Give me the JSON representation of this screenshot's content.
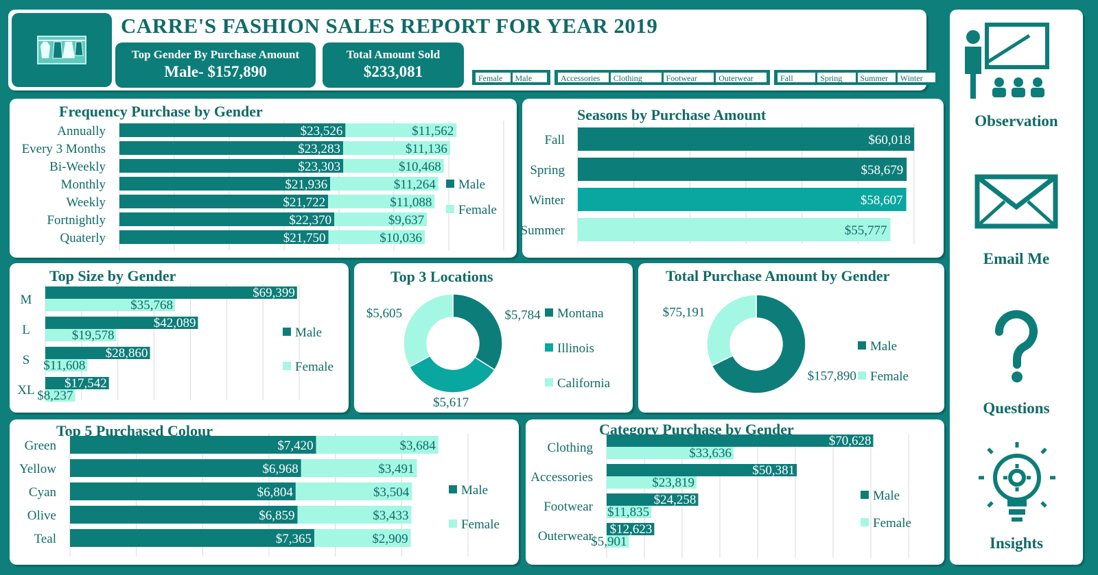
{
  "header": {
    "title": "CARRE'S FASHION SALES REPORT FOR YEAR 2019",
    "kpi1_label": "Top Gender By Purchase Amount",
    "kpi1_value": "Male- $157,890",
    "kpi2_label": "Total Amount Sold",
    "kpi2_value": "$233,081",
    "slicer_gender": [
      "Female",
      "Male"
    ],
    "slicer_category": [
      "Accessories",
      "Clothing",
      "Footwear",
      "Outerwear"
    ],
    "slicer_season": [
      "Fall",
      "Spring",
      "Summer",
      "Winter"
    ]
  },
  "nav": {
    "observation": "Observation",
    "email": "Email Me",
    "questions": "Questions",
    "insights": "Insights"
  },
  "colors": {
    "male": "#0d7d79",
    "female": "#a4f7e3",
    "mid": "#0aa6a0",
    "panel": "#ffffff",
    "bg": "#0e7f7b"
  },
  "chart_data": [
    {
      "id": "freq",
      "type": "bar",
      "orientation": "horizontal",
      "stacked": true,
      "title": "Frequency Purchase by Gender",
      "categories": [
        "Annually",
        "Every 3 Months",
        "Bi-Weekly",
        "Monthly",
        "Weekly",
        "Fortnightly",
        "Quaterly"
      ],
      "series": [
        {
          "name": "Male",
          "values": [
            23526,
            23283,
            23303,
            21936,
            21722,
            22370,
            21750
          ]
        },
        {
          "name": "Female",
          "values": [
            11562,
            11136,
            10468,
            11264,
            11088,
            9637,
            10036
          ]
        }
      ],
      "labels": {
        "Male": [
          "$23,526",
          "$23,283",
          "$23,303",
          "$21,936",
          "$21,722",
          "$22,370",
          "$21,750"
        ],
        "Female": [
          "$11,562",
          "$11,136",
          "$10,468",
          "$11,264",
          "$11,088",
          "$9,637",
          "$10,036"
        ]
      },
      "legend": "right"
    },
    {
      "id": "seasons",
      "type": "bar",
      "orientation": "horizontal",
      "title": "Seasons by Purchase Amount",
      "categories": [
        "Fall",
        "Spring",
        "Winter",
        "Summer"
      ],
      "values": [
        60018,
        58679,
        58607,
        55777
      ],
      "labels": [
        "$60,018",
        "$58,679",
        "$58,607",
        "$55,777"
      ]
    },
    {
      "id": "size",
      "type": "bar",
      "orientation": "horizontal",
      "grouped": true,
      "title": "Top Size by Gender",
      "categories": [
        "M",
        "L",
        "S",
        "XL"
      ],
      "series": [
        {
          "name": "Male",
          "values": [
            69399,
            42089,
            28860,
            17542
          ]
        },
        {
          "name": "Female",
          "values": [
            35768,
            19578,
            11608,
            8237
          ]
        }
      ],
      "labels": {
        "Male": [
          "$69,399",
          "$42,089",
          "$28,860",
          "$17,542"
        ],
        "Female": [
          "$35,768",
          "$19,578",
          "$11,608",
          "$8,237"
        ]
      },
      "legend": "right"
    },
    {
      "id": "locations",
      "type": "pie",
      "donut": true,
      "title": "Top 3 Locations",
      "categories": [
        "Montana",
        "Illinois",
        "California"
      ],
      "values": [
        5784,
        5617,
        5605
      ],
      "labels": [
        "$5,784",
        "$5,617",
        "$5,605"
      ],
      "legend": "right"
    },
    {
      "id": "gendertotal",
      "type": "pie",
      "donut": true,
      "title": "Total Purchase Amount by Gender",
      "categories": [
        "Male",
        "Female"
      ],
      "values": [
        157890,
        75191
      ],
      "labels": [
        "$157,890",
        "$75,191"
      ],
      "legend": "right"
    },
    {
      "id": "colour",
      "type": "bar",
      "orientation": "horizontal",
      "stacked": true,
      "title": "Top 5 Purchased Colour",
      "categories": [
        "Green",
        "Yellow",
        "Cyan",
        "Olive",
        "Teal"
      ],
      "series": [
        {
          "name": "Male",
          "values": [
            7420,
            6968,
            6804,
            6859,
            7365
          ]
        },
        {
          "name": "Female",
          "values": [
            3684,
            3491,
            3504,
            3433,
            2909
          ]
        }
      ],
      "labels": {
        "Male": [
          "$7,420",
          "$6,968",
          "$6,804",
          "$6,859",
          "$7,365"
        ],
        "Female": [
          "$3,684",
          "$3,491",
          "$3,504",
          "$3,433",
          "$2,909"
        ]
      },
      "legend": "right"
    },
    {
      "id": "category",
      "type": "bar",
      "orientation": "horizontal",
      "grouped": true,
      "title": "Category Purchase by Gender",
      "categories": [
        "Clothing",
        "Accessories",
        "Footwear",
        "Outerwear"
      ],
      "series": [
        {
          "name": "Male",
          "values": [
            70628,
            50381,
            24258,
            12623
          ]
        },
        {
          "name": "Female",
          "values": [
            33636,
            23819,
            11835,
            5901
          ]
        }
      ],
      "labels": {
        "Male": [
          "$70,628",
          "$50,381",
          "$24,258",
          "$12,623"
        ],
        "Female": [
          "$33,636",
          "$23,819",
          "$11,835",
          "$5,901"
        ]
      },
      "legend": "right"
    }
  ]
}
